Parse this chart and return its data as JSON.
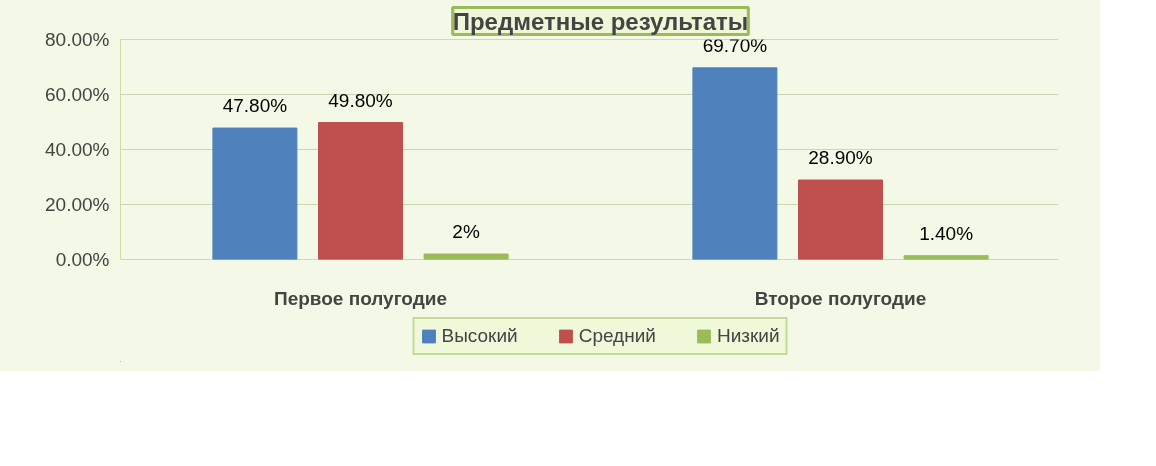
{
  "chart_data": {
    "type": "bar",
    "title": "Предметные результаты",
    "categories": [
      "Первое полугодие",
      "Второе полугодие"
    ],
    "series": [
      {
        "name": "Высокий",
        "color": "#4f81bd",
        "values": [
          47.8,
          69.7
        ],
        "value_labels": [
          "47.80%",
          "69.70%"
        ]
      },
      {
        "name": "Средний",
        "color": "#c0504d",
        "values": [
          49.8,
          28.9
        ],
        "value_labels": [
          "49.80%",
          "28.90%"
        ]
      },
      {
        "name": "Низкий",
        "color": "#9bbb59",
        "values": [
          2,
          1.4
        ],
        "value_labels": [
          "2%",
          "1.40%"
        ]
      }
    ],
    "ylim": [
      0,
      80
    ],
    "yticks": [
      {
        "value": 0,
        "label": "0.00%"
      },
      {
        "value": 20,
        "label": "20.00%"
      },
      {
        "value": 40,
        "label": "40.00%"
      },
      {
        "value": 60,
        "label": "60.00%"
      },
      {
        "value": 80,
        "label": "80.00%"
      }
    ],
    "grid": "y",
    "legend": "bottom"
  }
}
